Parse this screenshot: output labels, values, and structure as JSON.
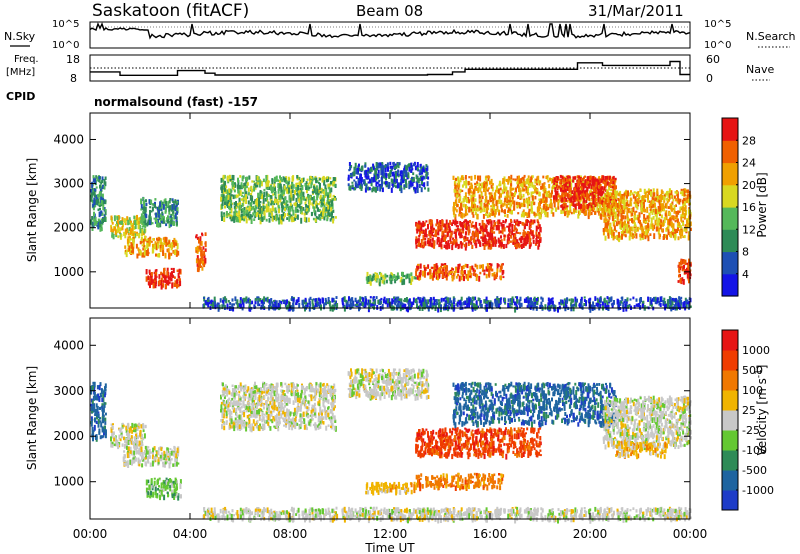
{
  "header": {
    "station": "Saskatoon (fitACF)",
    "beam": "Beam 08",
    "date": "31/Mar/2011"
  },
  "noise_panel": {
    "left_label": "N.Sky",
    "left_ticks": [
      "10^5",
      "10^0"
    ],
    "right_label": "N.Search",
    "right_ticks": [
      "10^5",
      "10^0"
    ]
  },
  "freq_panel": {
    "left_label_line1": "Freq.",
    "left_label_line2": "[MHz]",
    "left_ticks": [
      "18",
      "8"
    ],
    "right_label": "Nave",
    "right_ticks": [
      "60",
      "0"
    ]
  },
  "cpid": {
    "label": "CPID",
    "value": "normalsound (fast) -157"
  },
  "x_axis": {
    "label": "Time UT",
    "ticks": [
      "00:00",
      "04:00",
      "08:00",
      "12:00",
      "16:00",
      "20:00",
      "00:00"
    ]
  },
  "chart_data": [
    {
      "type": "heatmap",
      "name": "power",
      "ylabel": "Slant Range [km]",
      "yticks": [
        "1000",
        "2000",
        "3000",
        "4000"
      ],
      "ylim": [
        180,
        4600
      ],
      "xlim": [
        0,
        24
      ],
      "colorbar": {
        "label": "Power [dB]",
        "ticks": [
          "4",
          "8",
          "12",
          "16",
          "20",
          "24",
          "28"
        ],
        "colors": [
          "#1414e6",
          "#1e50b4",
          "#2e8b57",
          "#55b85a",
          "#d8d820",
          "#f0a000",
          "#f06000",
          "#e61414"
        ]
      },
      "regions": [
        {
          "t0": 0.0,
          "t1": 0.6,
          "r0": 2000,
          "r1": 3200,
          "level": 2
        },
        {
          "t0": 0.8,
          "t1": 2.2,
          "r0": 1800,
          "r1": 2300,
          "level": 4
        },
        {
          "t0": 1.3,
          "t1": 3.5,
          "r0": 1400,
          "r1": 1800,
          "level": 5
        },
        {
          "t0": 2.2,
          "t1": 3.6,
          "r0": 700,
          "r1": 1100,
          "level": 7
        },
        {
          "t0": 2.0,
          "t1": 3.5,
          "r0": 2100,
          "r1": 2700,
          "level": 2
        },
        {
          "t0": 4.2,
          "t1": 4.6,
          "r0": 1100,
          "r1": 1900,
          "level": 6
        },
        {
          "t0": 5.2,
          "t1": 9.8,
          "r0": 2200,
          "r1": 3200,
          "level": 3
        },
        {
          "t0": 10.3,
          "t1": 13.5,
          "r0": 2900,
          "r1": 3500,
          "level": 1
        },
        {
          "t0": 11.0,
          "t1": 13.0,
          "r0": 800,
          "r1": 1000,
          "level": 3
        },
        {
          "t0": 13.0,
          "t1": 18.0,
          "r0": 1600,
          "r1": 2200,
          "level": 7
        },
        {
          "t0": 13.0,
          "t1": 16.5,
          "r0": 900,
          "r1": 1200,
          "level": 6
        },
        {
          "t0": 14.5,
          "t1": 21.0,
          "r0": 2300,
          "r1": 3200,
          "level": 5
        },
        {
          "t0": 18.5,
          "t1": 21.0,
          "r0": 2500,
          "r1": 3200,
          "level": 7
        },
        {
          "t0": 20.5,
          "t1": 24.0,
          "r0": 1800,
          "r1": 2900,
          "level": 5
        },
        {
          "t0": 23.5,
          "t1": 24.0,
          "r0": 800,
          "r1": 1300,
          "level": 7
        },
        {
          "t0": 4.5,
          "t1": 24.0,
          "r0": 200,
          "r1": 450,
          "level": 1
        }
      ]
    },
    {
      "type": "heatmap",
      "name": "velocity",
      "ylabel": "Slant Range [km]",
      "yticks": [
        "1000",
        "2000",
        "3000",
        "4000"
      ],
      "ylim": [
        180,
        4600
      ],
      "xlim": [
        0,
        24
      ],
      "colorbar": {
        "label": "Velocity [m s^-1]",
        "ticks": [
          "1000",
          "500",
          "100",
          "25",
          "-25",
          "-100",
          "-500",
          "-1000"
        ],
        "colors": [
          "#1e3cc8",
          "#1e64a0",
          "#2e8b57",
          "#64c832",
          "#c8c8c8",
          "#f0b400",
          "#f07800",
          "#f03c00",
          "#e61414"
        ]
      },
      "regions": [
        {
          "t0": 0.0,
          "t1": 0.6,
          "r0": 2000,
          "r1": 3200,
          "level": 1
        },
        {
          "t0": 0.8,
          "t1": 2.2,
          "r0": 1800,
          "r1": 2300,
          "level": 4
        },
        {
          "t0": 1.3,
          "t1": 3.5,
          "r0": 1400,
          "r1": 1800,
          "level": 4
        },
        {
          "t0": 2.2,
          "t1": 3.6,
          "r0": 700,
          "r1": 1100,
          "level": 3
        },
        {
          "t0": 5.2,
          "t1": 9.8,
          "r0": 2200,
          "r1": 3200,
          "level": 4
        },
        {
          "t0": 10.3,
          "t1": 13.5,
          "r0": 2900,
          "r1": 3500,
          "level": 4
        },
        {
          "t0": 11.0,
          "t1": 13.0,
          "r0": 800,
          "r1": 1000,
          "level": 5
        },
        {
          "t0": 13.0,
          "t1": 18.0,
          "r0": 1600,
          "r1": 2200,
          "level": 7
        },
        {
          "t0": 13.0,
          "t1": 16.5,
          "r0": 900,
          "r1": 1200,
          "level": 6
        },
        {
          "t0": 14.5,
          "t1": 21.0,
          "r0": 2300,
          "r1": 3200,
          "level": 1
        },
        {
          "t0": 20.5,
          "t1": 24.0,
          "r0": 1800,
          "r1": 2900,
          "level": 4
        },
        {
          "t0": 21.0,
          "t1": 23.0,
          "r0": 1600,
          "r1": 1900,
          "level": 5
        },
        {
          "t0": 4.5,
          "t1": 24.0,
          "r0": 200,
          "r1": 450,
          "level": 4
        }
      ]
    }
  ]
}
